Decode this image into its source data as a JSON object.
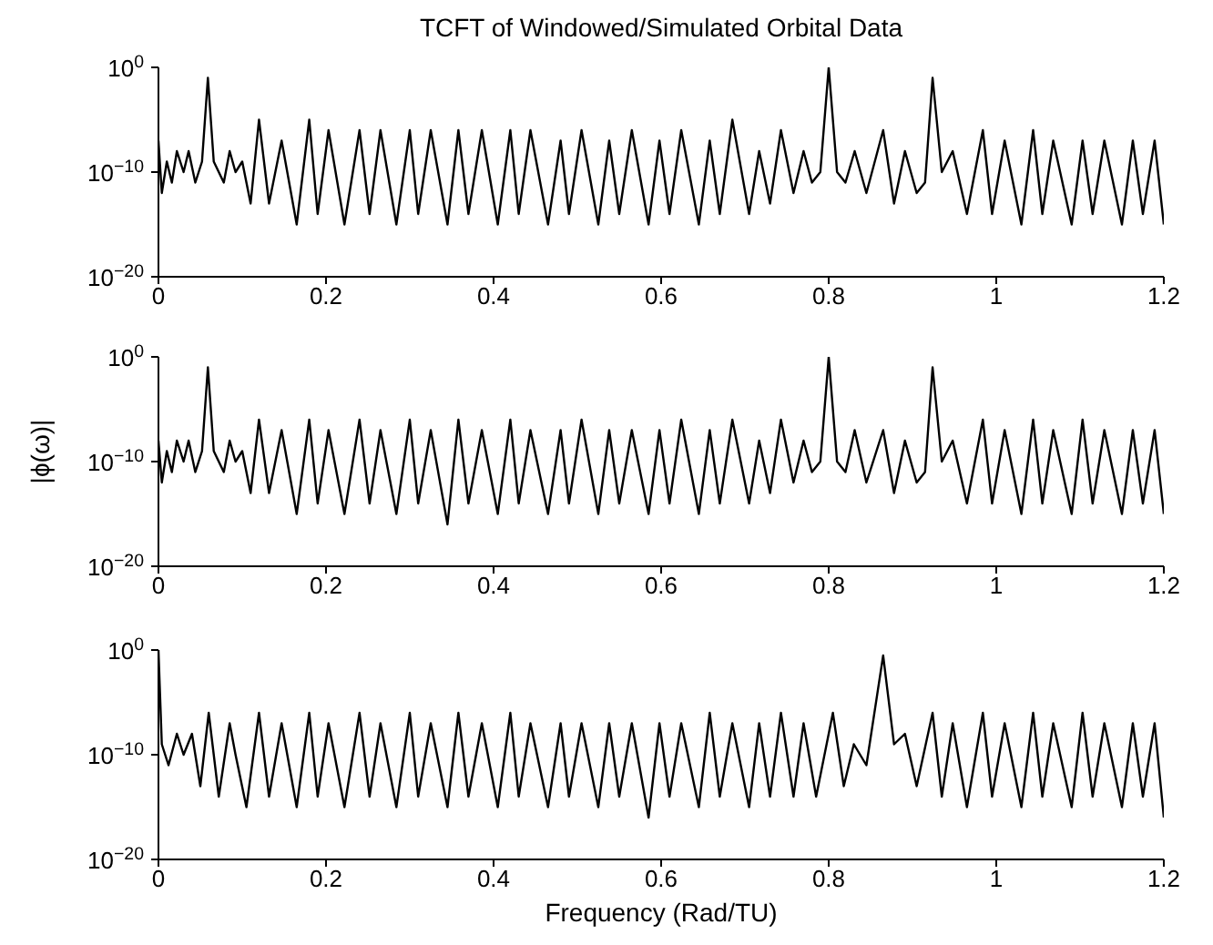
{
  "chart_data": [
    {
      "type": "line",
      "title": "TCFT of Windowed/Simulated Orbital Data",
      "log": "y",
      "xlim": [
        0,
        1.2
      ],
      "xticks": [
        0,
        0.2,
        0.4,
        0.6,
        0.8,
        1,
        1.2
      ],
      "ylim": [
        1e-20,
        1
      ],
      "yticks": [
        {
          "value": 1,
          "label": "10$^{0}$"
        },
        {
          "value": 1e-10,
          "label": "10$^{−10}$"
        },
        {
          "value": 1e-20,
          "label": "10$^{−20}$"
        }
      ],
      "series": [
        {
          "color": "#000000",
          "x": [
            0,
            0.004,
            0.01,
            0.016,
            0.022,
            0.03,
            0.036,
            0.044,
            0.052,
            0.059,
            0.066,
            0.078,
            0.085,
            0.092,
            0.1,
            0.11,
            0.12,
            0.132,
            0.147,
            0.165,
            0.18,
            0.19,
            0.203,
            0.222,
            0.24,
            0.252,
            0.265,
            0.284,
            0.3,
            0.31,
            0.325,
            0.345,
            0.358,
            0.37,
            0.386,
            0.405,
            0.42,
            0.43,
            0.444,
            0.465,
            0.48,
            0.49,
            0.505,
            0.525,
            0.538,
            0.55,
            0.565,
            0.585,
            0.598,
            0.61,
            0.624,
            0.645,
            0.658,
            0.67,
            0.685,
            0.705,
            0.717,
            0.73,
            0.743,
            0.758,
            0.77,
            0.78,
            0.79,
            0.8,
            0.81,
            0.82,
            0.831,
            0.845,
            0.865,
            0.878,
            0.891,
            0.905,
            0.915,
            0.924,
            0.935,
            0.948,
            0.965,
            0.984,
            0.995,
            1.01,
            1.03,
            1.044,
            1.055,
            1.068,
            1.09,
            1.103,
            1.115,
            1.129,
            1.15,
            1.163,
            1.175,
            1.189,
            1.2
          ],
          "values": [
            1e-07,
            1e-12,
            1e-09,
            1e-11,
            1e-08,
            1e-10,
            1e-08,
            1e-11,
            1e-09,
            0.1,
            1e-09,
            1e-11,
            1e-08,
            1e-10,
            1e-09,
            1e-13,
            1e-05,
            1e-13,
            1e-07,
            1e-15,
            1e-05,
            1e-14,
            1e-06,
            1e-15,
            1e-06,
            1e-14,
            1e-06,
            1e-15,
            1e-06,
            1e-14,
            1e-06,
            1e-15,
            1e-06,
            1e-14,
            1e-06,
            1e-15,
            1e-06,
            1e-14,
            1e-06,
            1e-15,
            1e-07,
            1e-14,
            1e-06,
            1e-15,
            1e-07,
            1e-14,
            1e-06,
            1e-15,
            1e-07,
            1e-14,
            1e-06,
            1e-15,
            1e-07,
            1e-14,
            1e-05,
            1e-14,
            1e-08,
            1e-13,
            1e-06,
            1e-12,
            1e-08,
            1e-11,
            1e-10,
            1,
            1e-10,
            1e-11,
            1e-08,
            1e-12,
            1e-06,
            1e-13,
            1e-08,
            1e-12,
            1e-11,
            0.1,
            1e-10,
            1e-08,
            1e-14,
            1e-06,
            1e-14,
            1e-07,
            1e-15,
            1e-06,
            1e-14,
            1e-07,
            1e-15,
            1e-07,
            1e-14,
            1e-07,
            1e-15,
            1e-07,
            1e-14,
            1e-07,
            1e-15
          ]
        }
      ]
    },
    {
      "type": "line",
      "ylabel": "|ϕ(ω)|",
      "log": "y",
      "xlim": [
        0,
        1.2
      ],
      "xticks": [
        0,
        0.2,
        0.4,
        0.6,
        0.8,
        1,
        1.2
      ],
      "ylim": [
        1e-20,
        1
      ],
      "yticks": [
        {
          "value": 1,
          "label": "10$^{0}$"
        },
        {
          "value": 1e-10,
          "label": "10$^{−10}$"
        },
        {
          "value": 1e-20,
          "label": "10$^{−20}$"
        }
      ],
      "series": [
        {
          "color": "#000000",
          "x": [
            0,
            0.004,
            0.01,
            0.016,
            0.022,
            0.03,
            0.036,
            0.044,
            0.052,
            0.059,
            0.066,
            0.078,
            0.085,
            0.092,
            0.1,
            0.11,
            0.12,
            0.132,
            0.147,
            0.165,
            0.18,
            0.19,
            0.203,
            0.222,
            0.24,
            0.252,
            0.265,
            0.284,
            0.3,
            0.31,
            0.325,
            0.345,
            0.358,
            0.37,
            0.386,
            0.405,
            0.42,
            0.43,
            0.444,
            0.465,
            0.48,
            0.49,
            0.505,
            0.525,
            0.538,
            0.55,
            0.565,
            0.585,
            0.598,
            0.61,
            0.624,
            0.645,
            0.658,
            0.67,
            0.685,
            0.705,
            0.717,
            0.73,
            0.743,
            0.758,
            0.77,
            0.78,
            0.79,
            0.8,
            0.81,
            0.82,
            0.831,
            0.845,
            0.865,
            0.878,
            0.891,
            0.905,
            0.915,
            0.924,
            0.935,
            0.948,
            0.965,
            0.984,
            0.995,
            1.01,
            1.03,
            1.044,
            1.055,
            1.068,
            1.09,
            1.103,
            1.115,
            1.129,
            1.15,
            1.163,
            1.175,
            1.189,
            1.2
          ],
          "values": [
            1e-08,
            1e-12,
            1e-09,
            1e-11,
            1e-08,
            1e-10,
            1e-08,
            1e-11,
            1e-09,
            0.1,
            1e-09,
            1e-11,
            1e-08,
            1e-10,
            1e-09,
            1e-13,
            1e-06,
            1e-13,
            1e-07,
            1e-15,
            1e-06,
            1e-14,
            1e-07,
            1e-15,
            1e-06,
            1e-14,
            1e-07,
            1e-15,
            1e-06,
            1e-14,
            1e-07,
            1e-16,
            1e-06,
            1e-14,
            1e-07,
            1e-15,
            1e-06,
            1e-14,
            1e-07,
            1e-15,
            1e-07,
            1e-14,
            1e-06,
            1e-15,
            1e-07,
            1e-14,
            1e-07,
            1e-15,
            1e-07,
            1e-14,
            1e-06,
            1e-15,
            1e-07,
            1e-14,
            1e-06,
            1e-14,
            1e-08,
            1e-13,
            1e-06,
            1e-12,
            1e-08,
            1e-11,
            1e-10,
            1,
            1e-10,
            1e-11,
            1e-07,
            1e-12,
            1e-07,
            1e-13,
            1e-08,
            1e-12,
            1e-11,
            0.1,
            1e-10,
            1e-08,
            1e-14,
            1e-06,
            1e-14,
            1e-07,
            1e-15,
            1e-06,
            1e-14,
            1e-07,
            1e-15,
            1e-06,
            1e-14,
            1e-07,
            1e-15,
            1e-07,
            1e-14,
            1e-07,
            1e-15
          ]
        }
      ]
    },
    {
      "type": "line",
      "xlabel": "Frequency (Rad/TU)",
      "log": "y",
      "xlim": [
        0,
        1.2
      ],
      "xticks": [
        0,
        0.2,
        0.4,
        0.6,
        0.8,
        1,
        1.2
      ],
      "ylim": [
        1e-20,
        1
      ],
      "yticks": [
        {
          "value": 1,
          "label": "10$^{0}$"
        },
        {
          "value": 1e-10,
          "label": "10$^{−10}$"
        },
        {
          "value": 1e-20,
          "label": "10$^{−20}$"
        }
      ],
      "series": [
        {
          "color": "#000000",
          "x": [
            0,
            0.004,
            0.012,
            0.022,
            0.03,
            0.04,
            0.05,
            0.06,
            0.072,
            0.085,
            0.092,
            0.105,
            0.12,
            0.132,
            0.147,
            0.165,
            0.18,
            0.19,
            0.203,
            0.222,
            0.24,
            0.252,
            0.265,
            0.284,
            0.3,
            0.31,
            0.325,
            0.345,
            0.358,
            0.37,
            0.386,
            0.405,
            0.42,
            0.43,
            0.444,
            0.465,
            0.48,
            0.49,
            0.505,
            0.525,
            0.538,
            0.55,
            0.565,
            0.585,
            0.598,
            0.61,
            0.624,
            0.645,
            0.658,
            0.67,
            0.685,
            0.705,
            0.717,
            0.73,
            0.743,
            0.758,
            0.77,
            0.785,
            0.805,
            0.818,
            0.83,
            0.845,
            0.865,
            0.878,
            0.891,
            0.905,
            0.924,
            0.935,
            0.948,
            0.965,
            0.984,
            0.995,
            1.01,
            1.03,
            1.044,
            1.055,
            1.068,
            1.09,
            1.103,
            1.115,
            1.129,
            1.15,
            1.163,
            1.175,
            1.189,
            1.2
          ],
          "values": [
            1,
            1e-09,
            1e-11,
            1e-08,
            1e-10,
            1e-08,
            1e-13,
            1e-06,
            1e-14,
            1e-07,
            1e-10,
            1e-15,
            1e-06,
            1e-14,
            1e-07,
            1e-15,
            1e-06,
            1e-14,
            1e-07,
            1e-15,
            1e-06,
            1e-14,
            1e-07,
            1e-15,
            1e-06,
            1e-14,
            1e-07,
            1e-15,
            1e-06,
            1e-14,
            1e-07,
            1e-15,
            1e-06,
            1e-14,
            1e-07,
            1e-15,
            1e-07,
            1e-14,
            1e-07,
            1e-15,
            1e-07,
            1e-14,
            1e-07,
            1e-16,
            1e-07,
            1e-14,
            1e-07,
            1e-15,
            1e-06,
            1e-14,
            1e-07,
            1e-15,
            1e-07,
            1e-14,
            1e-06,
            1e-14,
            1e-07,
            1e-14,
            1e-06,
            1e-13,
            1e-09,
            1e-11,
            0.3,
            1e-09,
            1e-08,
            1e-13,
            1e-06,
            1e-14,
            1e-07,
            1e-15,
            1e-06,
            1e-14,
            1e-07,
            1e-15,
            1e-06,
            1e-14,
            1e-07,
            1e-15,
            1e-06,
            1e-14,
            1e-07,
            1e-15,
            1e-07,
            1e-14,
            1e-07,
            1e-16
          ]
        }
      ]
    }
  ]
}
